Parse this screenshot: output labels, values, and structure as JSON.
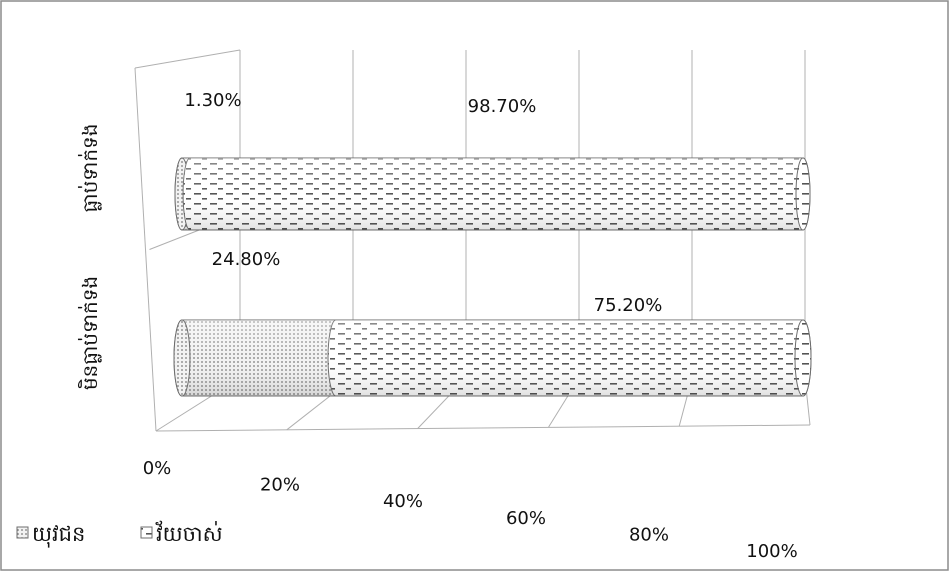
{
  "chart_data": {
    "type": "bar",
    "stacked": "100%",
    "orientation": "horizontal",
    "categories": [
      "មិនធ្លាប់ទាក់ទង",
      "ធ្លាប់ទាក់ទង"
    ],
    "series": [
      {
        "name": "យុវជន",
        "values": [
          24.8,
          1.3
        ],
        "labels": [
          "24.80%",
          "1.30%"
        ],
        "pattern": "dots"
      },
      {
        "name": "វ័យចាស់",
        "values": [
          75.2,
          98.7
        ],
        "labels": [
          "75.20%",
          "98.70%"
        ],
        "pattern": "dashes"
      }
    ],
    "x_ticks": [
      "0%",
      "20%",
      "40%",
      "60%",
      "80%",
      "100%"
    ],
    "xlim": [
      0,
      100
    ],
    "legend_position": "bottom-left",
    "grid": true,
    "style": "3d-cylinder"
  }
}
